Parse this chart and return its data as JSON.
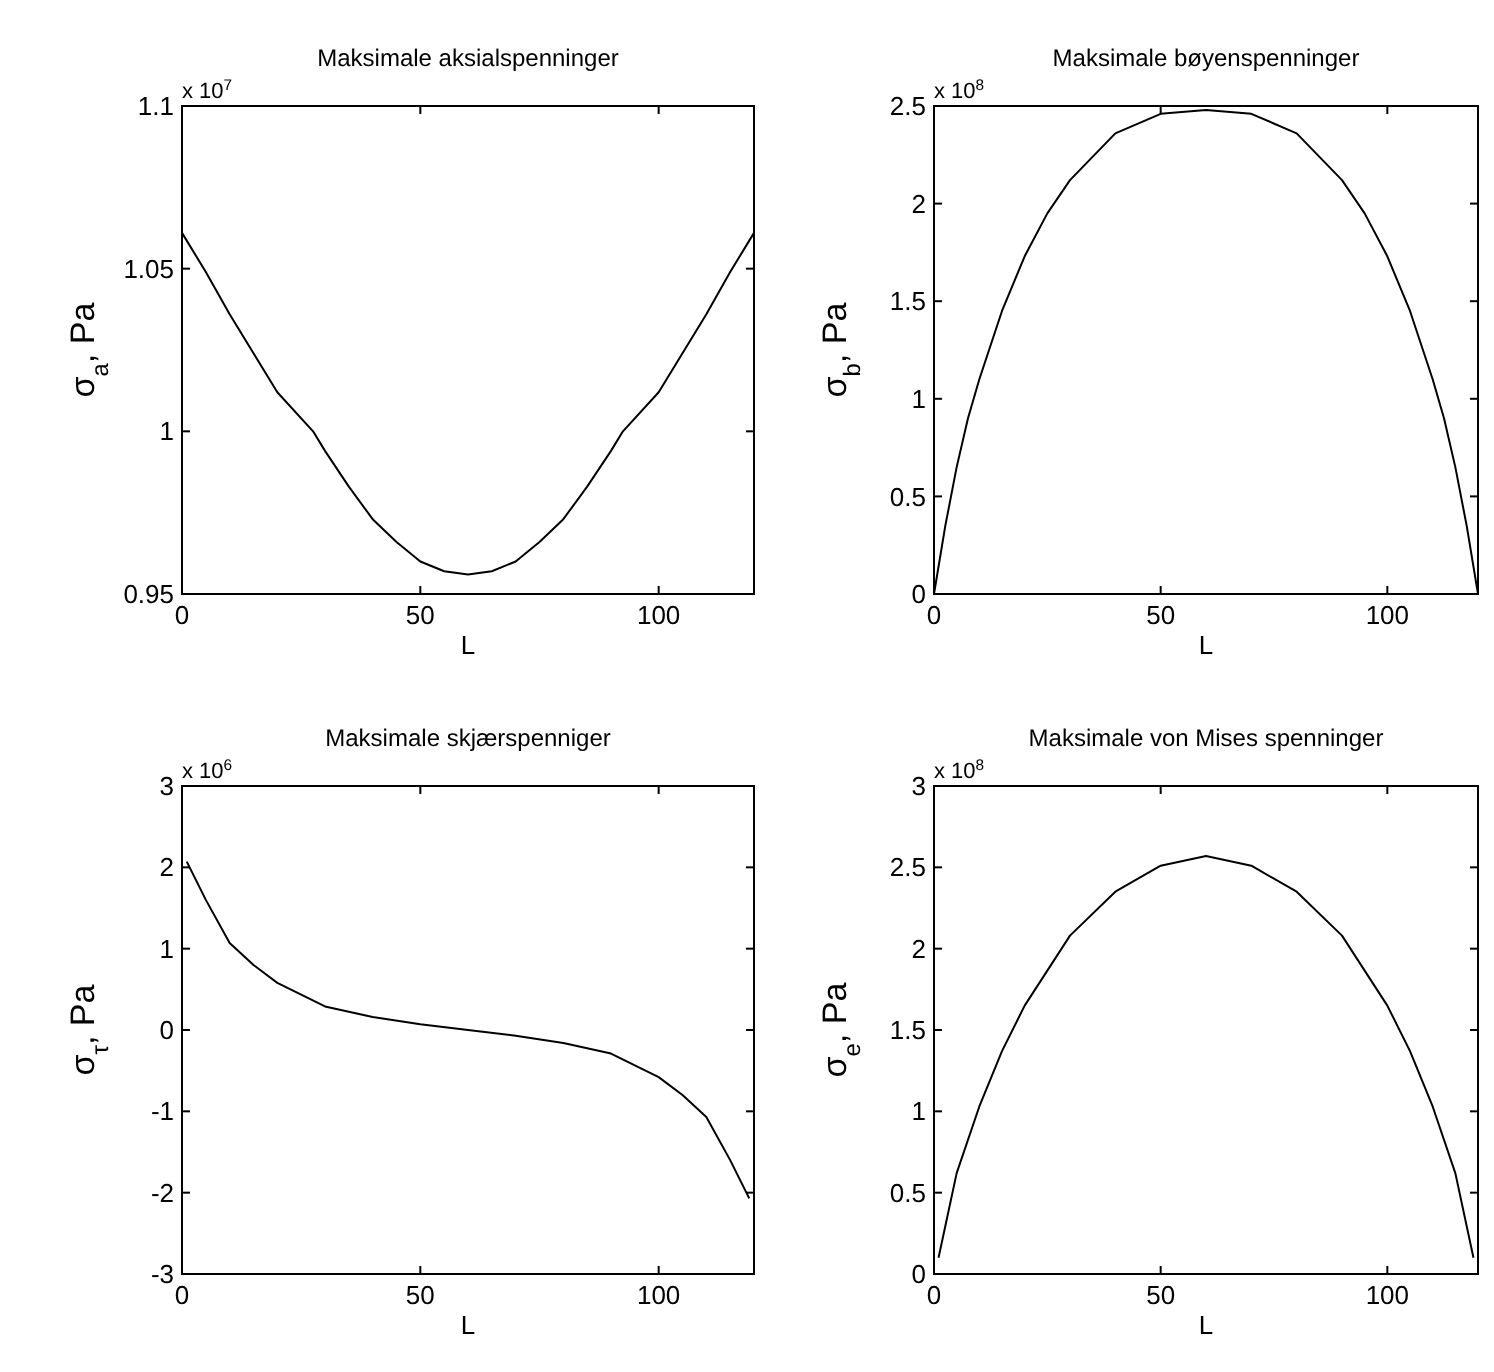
{
  "chart_data": [
    {
      "type": "line",
      "title": "Maksimale aksialspenninger",
      "xlabel": "L",
      "ylabel": "σ$_{a}$, Pa",
      "annotations": [
        "x 10$^{7}$"
      ],
      "grid": false,
      "color": "#000000",
      "x": [
        0,
        5,
        10,
        15,
        20,
        27.5,
        30,
        35,
        40,
        45,
        50,
        55,
        60,
        65,
        70,
        75,
        80,
        85,
        90,
        92.5,
        100,
        105,
        110,
        115,
        120
      ],
      "values": [
        1.061,
        1.049,
        1.036,
        1.024,
        1.012,
        1.0,
        0.994,
        0.983,
        0.973,
        0.966,
        0.96,
        0.957,
        0.956,
        0.957,
        0.96,
        0.966,
        0.973,
        0.983,
        0.994,
        1.0,
        1.012,
        1.024,
        1.036,
        1.049,
        1.061
      ],
      "xlim": [
        0,
        120
      ],
      "xticks": [
        0,
        50,
        100
      ],
      "ylim": [
        0.95,
        1.1
      ],
      "yticks": [
        0.95,
        1,
        1.05,
        1.1
      ]
    },
    {
      "type": "line",
      "title": "Maksimale bøyenspenninger",
      "xlabel": "L",
      "ylabel": "σ$_{b}$, Pa",
      "annotations": [
        "x 10$^{8}$"
      ],
      "grid": false,
      "color": "#000000",
      "x": [
        0,
        2.5,
        5,
        7.5,
        10,
        15,
        20,
        25,
        30,
        40,
        50,
        60,
        70,
        80,
        90,
        95,
        100,
        105,
        110,
        112.5,
        115,
        117.5,
        120
      ],
      "values": [
        0.0,
        0.35,
        0.65,
        0.9,
        1.1,
        1.45,
        1.73,
        1.95,
        2.12,
        2.36,
        2.46,
        2.48,
        2.46,
        2.36,
        2.12,
        1.95,
        1.73,
        1.45,
        1.1,
        0.9,
        0.65,
        0.35,
        0.0
      ],
      "xlim": [
        0,
        120
      ],
      "xticks": [
        0,
        50,
        100
      ],
      "ylim": [
        0,
        2.5
      ],
      "yticks": [
        0,
        0.5,
        1,
        1.5,
        2,
        2.5
      ]
    },
    {
      "type": "line",
      "title": "Maksimale skjærspenniger",
      "xlabel": "L",
      "ylabel": "σ$_{τ}$, Pa",
      "annotations": [
        "x 10$^{6}$"
      ],
      "grid": false,
      "color": "#000000",
      "x": [
        1,
        5,
        10,
        15,
        20,
        30,
        40,
        50,
        60,
        70,
        80,
        90,
        100,
        105,
        110,
        115,
        119
      ],
      "values": [
        2.07,
        1.6,
        1.07,
        0.8,
        0.58,
        0.29,
        0.16,
        0.07,
        0,
        -0.07,
        -0.16,
        -0.29,
        -0.58,
        -0.8,
        -1.07,
        -1.6,
        -2.07
      ],
      "xlim": [
        0,
        120
      ],
      "xticks": [
        0,
        50,
        100
      ],
      "ylim": [
        -3,
        3
      ],
      "yticks": [
        -3,
        -2,
        -1,
        0,
        1,
        2,
        3
      ]
    },
    {
      "type": "line",
      "title": "Maksimale von Mises spenninger",
      "xlabel": "L",
      "ylabel": "σ$_{e}$, Pa",
      "annotations": [
        "x 10$^{8}$"
      ],
      "grid": false,
      "color": "#000000",
      "x": [
        1,
        5,
        10,
        15,
        20,
        30,
        40,
        50,
        60,
        70,
        80,
        90,
        100,
        105,
        110,
        115,
        119
      ],
      "values": [
        0.1,
        0.62,
        1.03,
        1.37,
        1.65,
        2.08,
        2.35,
        2.51,
        2.57,
        2.51,
        2.35,
        2.08,
        1.65,
        1.37,
        1.03,
        0.62,
        0.1
      ],
      "xlim": [
        0,
        120
      ],
      "xticks": [
        0,
        50,
        100
      ],
      "ylim": [
        0,
        3
      ],
      "yticks": [
        0,
        0.5,
        1,
        1.5,
        2,
        2.5,
        3
      ]
    }
  ]
}
